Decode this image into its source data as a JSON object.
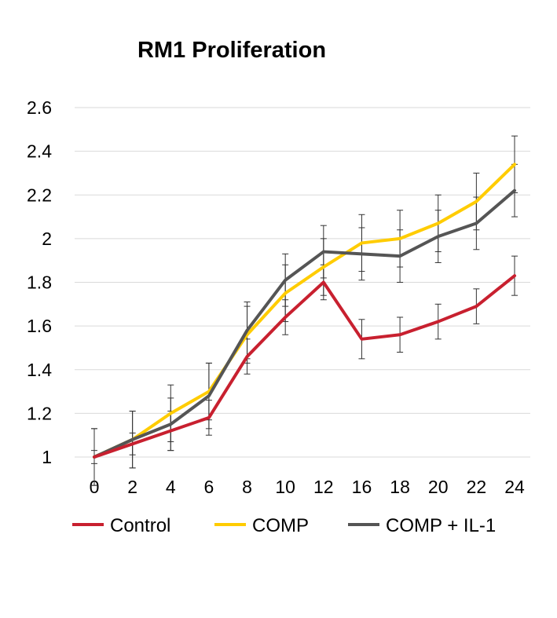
{
  "chart_data": {
    "type": "line",
    "title": "RM1 Proliferation",
    "xlabel": "",
    "ylabel": "",
    "categories": [
      "0",
      "2",
      "4",
      "6",
      "8",
      "10",
      "12",
      "16",
      "18",
      "20",
      "22",
      "24"
    ],
    "ylim": [
      1,
      2.6
    ],
    "yticks": [
      "1",
      "1.2",
      "1.4",
      "1.6",
      "1.8",
      "2",
      "2.2",
      "2.4",
      "2.6"
    ],
    "grid": true,
    "legend_position": "bottom",
    "series": [
      {
        "name": "Control",
        "color": "#c8202f",
        "values": [
          1.0,
          1.06,
          1.12,
          1.18,
          1.46,
          1.64,
          1.8,
          1.54,
          1.56,
          1.62,
          1.69,
          1.83
        ],
        "errors": [
          0.03,
          0.05,
          0.09,
          0.08,
          0.08,
          0.08,
          0.08,
          0.09,
          0.08,
          0.08,
          0.08,
          0.09
        ]
      },
      {
        "name": "COMP",
        "color": "#ffcc00",
        "values": [
          1.0,
          1.08,
          1.2,
          1.3,
          1.56,
          1.75,
          1.87,
          1.98,
          2.0,
          2.07,
          2.17,
          2.34
        ],
        "errors": [
          0.13,
          0.13,
          0.13,
          0.13,
          0.13,
          0.13,
          0.13,
          0.13,
          0.13,
          0.13,
          0.13,
          0.13
        ]
      },
      {
        "name": "COMP + IL-1",
        "color": "#555555",
        "values": [
          1.0,
          1.08,
          1.15,
          1.28,
          1.58,
          1.81,
          1.94,
          1.93,
          1.92,
          2.01,
          2.07,
          2.22
        ],
        "errors": [
          0.13,
          0.13,
          0.12,
          0.15,
          0.13,
          0.12,
          0.12,
          0.12,
          0.12,
          0.12,
          0.12,
          0.12
        ]
      }
    ]
  }
}
